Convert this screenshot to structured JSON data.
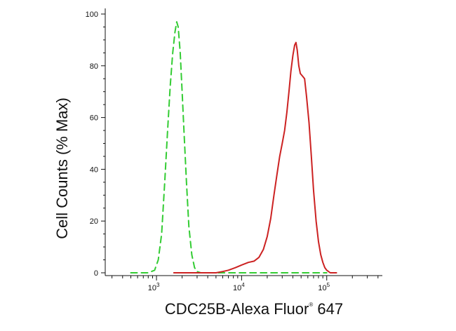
{
  "chart_data": {
    "type": "line",
    "xlabel": "CDC25B-Alexa Fluor",
    "xlabel_superscript": "®",
    "xlabel_suffix": " 647",
    "ylabel": "Cell Counts (% Max)",
    "x_scale": "log",
    "xlim": [
      250,
      450000
    ],
    "ylim": [
      0,
      100
    ],
    "x_ticks": [
      {
        "value": 1000,
        "base": "10",
        "exp": "3"
      },
      {
        "value": 10000,
        "base": "10",
        "exp": "4"
      },
      {
        "value": 100000,
        "base": "10",
        "exp": "5"
      }
    ],
    "y_ticks": [
      0,
      20,
      40,
      60,
      80,
      100
    ],
    "grid": false,
    "series": [
      {
        "color": "#33cc33",
        "dash": "dashed",
        "points": [
          [
            500,
            0
          ],
          [
            800,
            0
          ],
          [
            950,
            1
          ],
          [
            1050,
            5
          ],
          [
            1150,
            15
          ],
          [
            1250,
            35
          ],
          [
            1350,
            55
          ],
          [
            1450,
            72
          ],
          [
            1550,
            85
          ],
          [
            1650,
            93
          ],
          [
            1730,
            97
          ],
          [
            1800,
            95
          ],
          [
            1900,
            85
          ],
          [
            2000,
            70
          ],
          [
            2100,
            55
          ],
          [
            2250,
            35
          ],
          [
            2400,
            18
          ],
          [
            2600,
            7
          ],
          [
            2800,
            2
          ],
          [
            3000,
            0.5
          ],
          [
            3300,
            0
          ],
          [
            4500,
            0
          ],
          [
            10000,
            0
          ],
          [
            50000,
            0
          ],
          [
            100000,
            0
          ]
        ]
      },
      {
        "color": "#cc2222",
        "dash": "solid",
        "points": [
          [
            1600,
            0
          ],
          [
            5000,
            0
          ],
          [
            6000,
            0.5
          ],
          [
            7000,
            1
          ],
          [
            8500,
            2
          ],
          [
            10000,
            3
          ],
          [
            12000,
            4
          ],
          [
            14000,
            4.5
          ],
          [
            16000,
            6
          ],
          [
            18000,
            9
          ],
          [
            20000,
            14
          ],
          [
            22000,
            21
          ],
          [
            24000,
            30
          ],
          [
            26000,
            38
          ],
          [
            28000,
            45
          ],
          [
            30000,
            50
          ],
          [
            32000,
            55
          ],
          [
            34000,
            62
          ],
          [
            36000,
            70
          ],
          [
            38000,
            78
          ],
          [
            40000,
            84
          ],
          [
            42000,
            88
          ],
          [
            43500,
            89
          ],
          [
            45000,
            86
          ],
          [
            47000,
            80
          ],
          [
            49000,
            77
          ],
          [
            52000,
            76
          ],
          [
            55000,
            75
          ],
          [
            58000,
            68
          ],
          [
            62000,
            58
          ],
          [
            66000,
            45
          ],
          [
            70000,
            32
          ],
          [
            75000,
            20
          ],
          [
            80000,
            12
          ],
          [
            85000,
            7
          ],
          [
            90000,
            4
          ],
          [
            95000,
            2
          ],
          [
            100000,
            1
          ],
          [
            110000,
            0
          ],
          [
            130000,
            0
          ]
        ]
      }
    ]
  }
}
